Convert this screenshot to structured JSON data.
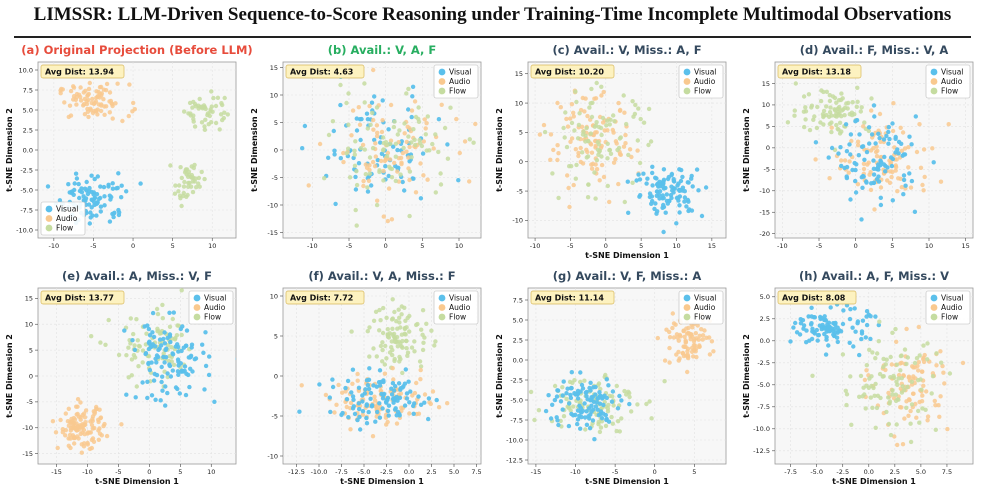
{
  "header": {
    "title": "LIMSSR: LLM-Driven Sequence-to-Score Reasoning under Training-Time Incomplete Multimodal Observations"
  },
  "colors": {
    "visual": "#5bc0eb",
    "audio": "#f9c98f",
    "flow": "#c5dca0",
    "title_red": "#e74c3c",
    "title_green": "#27ae60",
    "title_dark": "#34495e"
  },
  "legend_labels": [
    "Visual",
    "Audio",
    "Flow"
  ],
  "chart_data": [
    {
      "type": "scatter",
      "panel": "a",
      "title": "(a) Original Projection (Before LLM)",
      "title_color": "#e74c3c",
      "avg_dist": "Avg Dist: 13.94",
      "xlabel": "",
      "ylabel": "t-SNE Dimension 2",
      "xlim": [
        -12,
        13
      ],
      "ylim": [
        -11,
        11
      ],
      "xticks": [
        -10,
        -5,
        0,
        5,
        10
      ],
      "yticks": [
        -10.0,
        -7.5,
        -5.0,
        -2.5,
        0.0,
        2.5,
        5.0,
        7.5,
        10.0
      ],
      "legend_position": "lower-left",
      "grid": true,
      "clusters": [
        {
          "series": "Audio",
          "n": 90,
          "cx": -5,
          "cy": 6,
          "sx": 3.2,
          "sy": 1.6
        },
        {
          "series": "Visual",
          "n": 100,
          "cx": -5,
          "cy": -6,
          "sx": 3.2,
          "sy": 2.2
        },
        {
          "series": "Flow",
          "n": 50,
          "cx": 9,
          "cy": 5,
          "sx": 1.8,
          "sy": 1.8
        },
        {
          "series": "Flow",
          "n": 45,
          "cx": 7,
          "cy": -4,
          "sx": 1.2,
          "sy": 1.8
        }
      ]
    },
    {
      "type": "scatter",
      "panel": "b",
      "title": "(b) Avail.: V, A, F",
      "title_color": "#27ae60",
      "avg_dist": "Avg Dist: 4.63",
      "xlabel": "",
      "ylabel": "t-SNE Dimension 2",
      "xlim": [
        -14,
        13
      ],
      "ylim": [
        -16,
        16
      ],
      "xticks": [
        -10,
        -5,
        0,
        5,
        10
      ],
      "yticks": [
        -15,
        -10,
        -5,
        0,
        5,
        10,
        15
      ],
      "legend_position": "top-right",
      "grid": true,
      "clusters": [
        {
          "series": "Visual",
          "n": 90,
          "cx": -1,
          "cy": 0,
          "sx": 6,
          "sy": 7
        },
        {
          "series": "Audio",
          "n": 90,
          "cx": 0,
          "cy": 0,
          "sx": 6,
          "sy": 7
        },
        {
          "series": "Flow",
          "n": 90,
          "cx": 1,
          "cy": 1,
          "sx": 6,
          "sy": 7
        }
      ]
    },
    {
      "type": "scatter",
      "panel": "c",
      "title": "(c) Avail.: V, Miss.: A, F",
      "title_color": "#34495e",
      "avg_dist": "Avg Dist: 10.20",
      "xlabel": "t-SNE Dimension 1",
      "ylabel": "t-SNE Dimension 2",
      "xlim": [
        -11,
        17
      ],
      "ylim": [
        -13,
        17
      ],
      "xticks": [
        -10,
        -5,
        0,
        5,
        10,
        15
      ],
      "yticks": [
        -10,
        -5,
        0,
        5,
        10,
        15
      ],
      "legend_position": "top-right",
      "grid": true,
      "clusters": [
        {
          "series": "Audio",
          "n": 110,
          "cx": -2,
          "cy": 3,
          "sx": 4.5,
          "sy": 6
        },
        {
          "series": "Flow",
          "n": 90,
          "cx": -1,
          "cy": 4,
          "sx": 5,
          "sy": 6
        },
        {
          "series": "Visual",
          "n": 110,
          "cx": 9,
          "cy": -5,
          "sx": 3.5,
          "sy": 3
        }
      ]
    },
    {
      "type": "scatter",
      "panel": "d",
      "title": "(d) Avail.: F, Miss.: V, A",
      "title_color": "#34495e",
      "avg_dist": "Avg Dist: 13.18",
      "xlabel": "",
      "ylabel": "t-SNE Dimension 2",
      "xlim": [
        -11,
        16
      ],
      "ylim": [
        -21,
        20
      ],
      "xticks": [
        -10,
        -5,
        0,
        5,
        10,
        15
      ],
      "yticks": [
        -20,
        -15,
        -10,
        -5,
        0,
        5,
        10,
        15
      ],
      "legend_position": "top-right",
      "grid": true,
      "clusters": [
        {
          "series": "Flow",
          "n": 90,
          "cx": -3,
          "cy": 9,
          "sx": 3.5,
          "sy": 4
        },
        {
          "series": "Audio",
          "n": 100,
          "cx": 4,
          "cy": -3,
          "sx": 5,
          "sy": 7
        },
        {
          "series": "Visual",
          "n": 100,
          "cx": 3,
          "cy": -3,
          "sx": 4,
          "sy": 7
        }
      ]
    },
    {
      "type": "scatter",
      "panel": "e",
      "title": "(e) Avail.: A, Miss.: V, F",
      "title_color": "#34495e",
      "avg_dist": "Avg Dist: 13.77",
      "xlabel": "t-SNE Dimension 1",
      "ylabel": "t-SNE Dimension 2",
      "xlim": [
        -18,
        14
      ],
      "ylim": [
        -17,
        17
      ],
      "xticks": [
        -15,
        -10,
        -5,
        0,
        5,
        10
      ],
      "yticks": [
        -15,
        -10,
        -5,
        0,
        5,
        10,
        15
      ],
      "legend_position": "top-right",
      "grid": true,
      "clusters": [
        {
          "series": "Audio",
          "n": 120,
          "cx": -11,
          "cy": -10,
          "sx": 2.6,
          "sy": 2.8
        },
        {
          "series": "Flow",
          "n": 90,
          "cx": 1,
          "cy": 5,
          "sx": 5,
          "sy": 5
        },
        {
          "series": "Visual",
          "n": 120,
          "cx": 3,
          "cy": 3,
          "sx": 4.5,
          "sy": 5.5
        }
      ]
    },
    {
      "type": "scatter",
      "panel": "f",
      "title": "(f) Avail.: V, A, Miss.: F",
      "title_color": "#34495e",
      "avg_dist": "Avg Dist: 7.72",
      "xlabel": "t-SNE Dimension 1",
      "ylabel": "",
      "xlim": [
        -14,
        8
      ],
      "ylim": [
        -11,
        11
      ],
      "xticks": [
        -12.5,
        -10.0,
        -7.5,
        -5.0,
        -2.5,
        0.0,
        2.5,
        5.0,
        7.5
      ],
      "yticks": [
        -10,
        -5,
        0,
        5,
        10
      ],
      "legend_position": "top-right",
      "grid": true,
      "clusters": [
        {
          "series": "Flow",
          "n": 100,
          "cx": -1,
          "cy": 5,
          "sx": 2.5,
          "sy": 3
        },
        {
          "series": "Audio",
          "n": 110,
          "cx": -3,
          "cy": -3,
          "sx": 4.2,
          "sy": 2.2
        },
        {
          "series": "Visual",
          "n": 110,
          "cx": -3,
          "cy": -3,
          "sx": 4.2,
          "sy": 2.2
        }
      ]
    },
    {
      "type": "scatter",
      "panel": "g",
      "title": "(g) Avail.: V, F, Miss.: A",
      "title_color": "#34495e",
      "avg_dist": "Avg Dist: 11.14",
      "xlabel": "t-SNE Dimension 1",
      "ylabel": "t-SNE Dimension 2",
      "xlim": [
        -16,
        9
      ],
      "ylim": [
        -13,
        9
      ],
      "xticks": [
        -15,
        -10,
        -5,
        0,
        5
      ],
      "yticks": [
        -12.5,
        -10.0,
        -7.5,
        -5.0,
        -2.5,
        0.0,
        2.5,
        5.0,
        7.5
      ],
      "legend_position": "top-right",
      "grid": true,
      "clusters": [
        {
          "series": "Audio",
          "n": 90,
          "cx": 4,
          "cy": 2.5,
          "sx": 2.2,
          "sy": 2
        },
        {
          "series": "Flow",
          "n": 100,
          "cx": -8,
          "cy": -5,
          "sx": 4,
          "sy": 2.8
        },
        {
          "series": "Visual",
          "n": 110,
          "cx": -9,
          "cy": -5.5,
          "sx": 3.2,
          "sy": 2.5
        }
      ]
    },
    {
      "type": "scatter",
      "panel": "h",
      "title": "(h) Avail.: A, F, Miss.: V",
      "title_color": "#34495e",
      "avg_dist": "Avg Dist: 8.08",
      "xlabel": "t-SNE Dimension 1",
      "ylabel": "t-SNE Dimension 2",
      "xlim": [
        -9,
        10
      ],
      "ylim": [
        -14,
        6
      ],
      "xticks": [
        -7.5,
        -5.0,
        -2.5,
        0.0,
        2.5,
        5.0,
        7.5
      ],
      "yticks": [
        -12.5,
        -10.0,
        -7.5,
        -5.0,
        -2.5,
        0.0,
        2.5,
        5.0
      ],
      "legend_position": "top-right",
      "grid": true,
      "clusters": [
        {
          "series": "Visual",
          "n": 110,
          "cx": -3.5,
          "cy": 1.5,
          "sx": 2.5,
          "sy": 1.6
        },
        {
          "series": "Audio",
          "n": 100,
          "cx": 4,
          "cy": -5,
          "sx": 2.6,
          "sy": 4
        },
        {
          "series": "Flow",
          "n": 100,
          "cx": 2,
          "cy": -5,
          "sx": 3.5,
          "sy": 4
        }
      ]
    }
  ]
}
